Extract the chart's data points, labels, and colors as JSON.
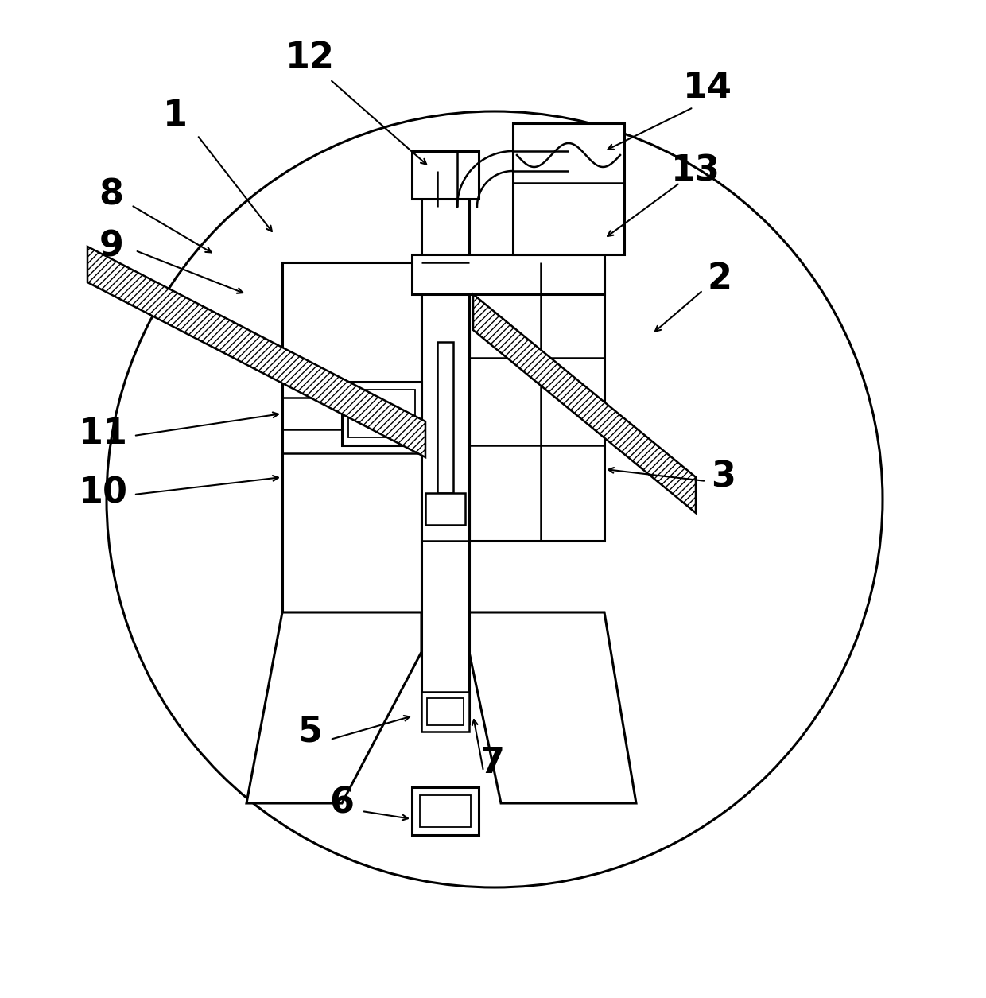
{
  "bg_color": "#ffffff",
  "line_color": "#000000",
  "figsize": [
    12.4,
    12.55
  ],
  "dpi": 100
}
